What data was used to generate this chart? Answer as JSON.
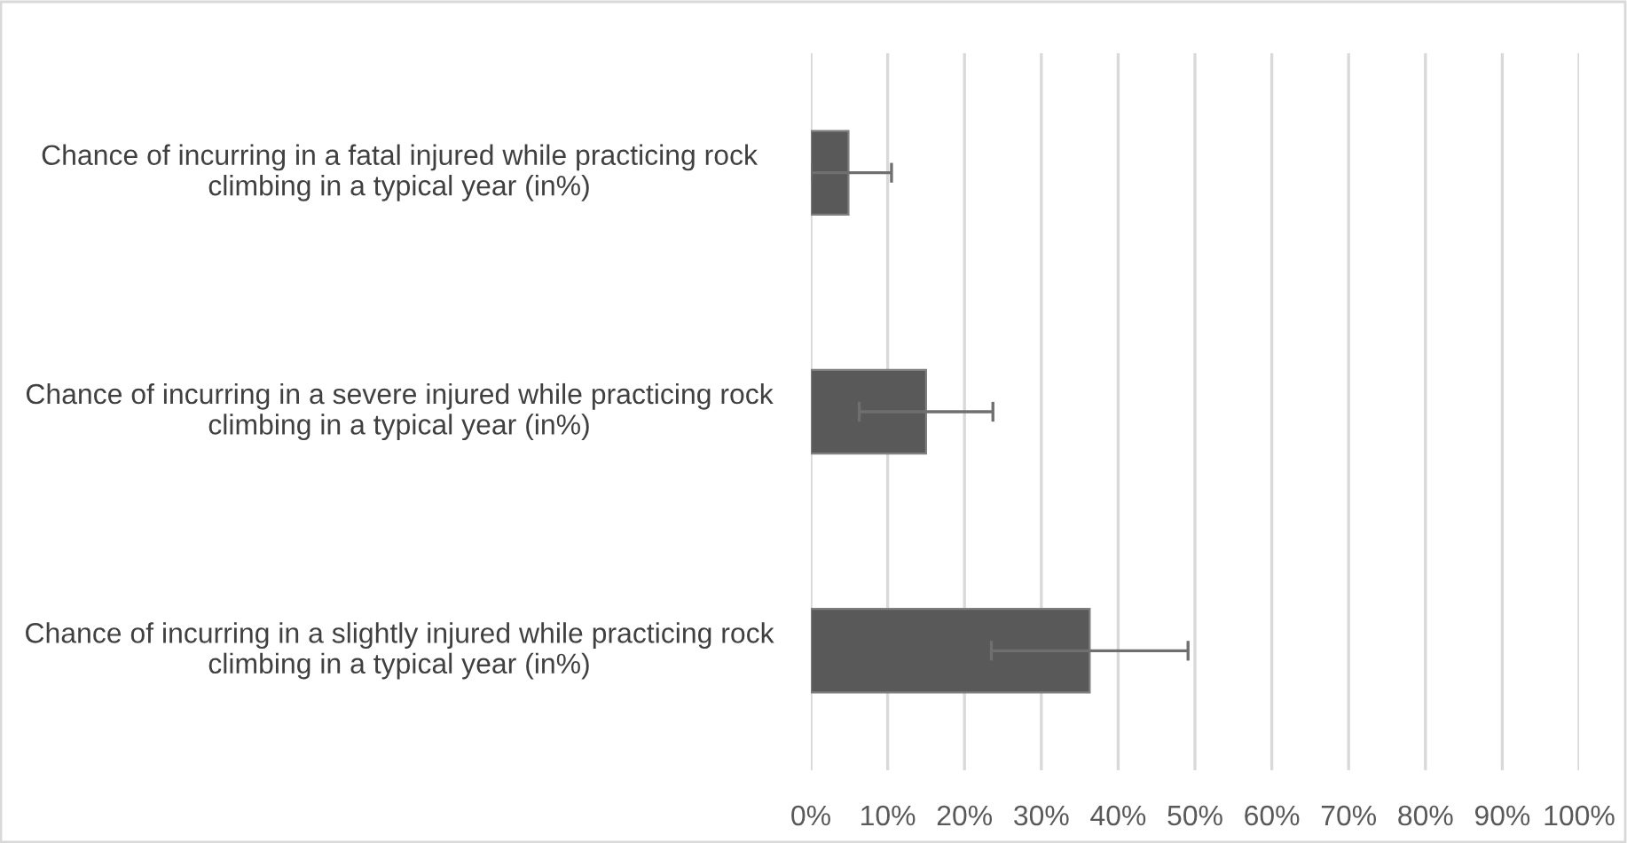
{
  "chart_data": {
    "type": "bar",
    "orientation": "horizontal",
    "categories": [
      "Chance of incurring in a fatal injured while practicing rock climbing in a typical year (in%)",
      "Chance of incurring in a severe injured while practicing rock climbing in a typical year (in%)",
      "Chance of incurring in a slightly injured while practicing rock climbing in a typical year (in%)"
    ],
    "values": [
      4.9,
      15,
      36.3
    ],
    "errors": [
      [
        0,
        10.5
      ],
      8.7,
      12.8
    ],
    "color": "#595959",
    "xlim": [
      0,
      100
    ],
    "xticks": [
      {
        "value": 0,
        "label": "0%"
      },
      {
        "value": 10,
        "label": "10%"
      },
      {
        "value": 20,
        "label": "20%"
      },
      {
        "value": 30,
        "label": "30%"
      },
      {
        "value": 40,
        "label": "40%"
      },
      {
        "value": 50,
        "label": "50%"
      },
      {
        "value": 60,
        "label": "60%"
      },
      {
        "value": 70,
        "label": "70%"
      },
      {
        "value": 80,
        "label": "80%"
      },
      {
        "value": 90,
        "label": "90%"
      },
      {
        "value": 100,
        "label": "100%"
      }
    ],
    "grid": "x",
    "legend": false
  }
}
